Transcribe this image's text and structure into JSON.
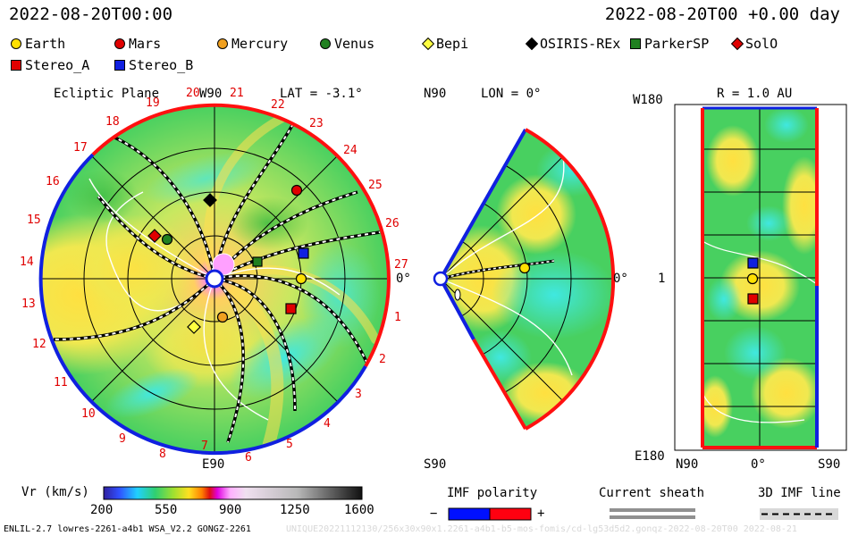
{
  "header": {
    "left_time": "2022-08-20T00:00",
    "right_time": "2022-08-20T00 +0.00 day"
  },
  "legend": {
    "items": [
      {
        "label": "Earth",
        "shape": "circle",
        "color": "#ffe000"
      },
      {
        "label": "Mars",
        "shape": "circle",
        "color": "#e00000"
      },
      {
        "label": "Mercury",
        "shape": "circle",
        "color": "#f0a020"
      },
      {
        "label": "Venus",
        "shape": "circle",
        "color": "#208020"
      },
      {
        "label": "Bepi",
        "shape": "diamond",
        "color": "#ffff40"
      },
      {
        "label": "OSIRIS-REx",
        "shape": "diamond",
        "color": "#000000"
      },
      {
        "label": "ParkerSP",
        "shape": "square",
        "color": "#208020"
      },
      {
        "label": "SolO",
        "shape": "diamond",
        "color": "#e00000"
      },
      {
        "label": "Stereo_A",
        "shape": "square",
        "color": "#e00000"
      },
      {
        "label": "Stereo_B",
        "shape": "square",
        "color": "#1020e0"
      }
    ]
  },
  "ecliptic": {
    "title": "Ecliptic Plane",
    "top_label": "W90",
    "lat_label": "LAT = -3.1°",
    "right_label": "0°",
    "bottom_label": "E90",
    "carrington_labels": [
      "1",
      "2",
      "3",
      "4",
      "5",
      "6",
      "7",
      "8",
      "9",
      "10",
      "11",
      "12",
      "13",
      "14",
      "15",
      "16",
      "17",
      "18",
      "19",
      "20",
      "21",
      "22",
      "23",
      "24",
      "25",
      "26",
      "27"
    ]
  },
  "meridional": {
    "top_label": "N90",
    "lon_label": "LON = 0°",
    "right_label": "0°",
    "bottom_label": "S90"
  },
  "sphere": {
    "radius_label": "R = 1.0 AU",
    "top_left": "W180",
    "mid_left": "1",
    "bottom_left": "E180",
    "x_left": "N90",
    "x_mid": "0°",
    "x_right": "S90"
  },
  "colorbar": {
    "title": "Vr (km/s)",
    "ticks": [
      "200",
      "550",
      "900",
      "1250",
      "1600"
    ]
  },
  "imf": {
    "title": "IMF polarity",
    "minus": "−",
    "plus": "+",
    "negative_color": "#0010ff",
    "positive_color": "#ff0010"
  },
  "sheath": {
    "title": "Current sheath"
  },
  "imf3d": {
    "title": "3D IMF line"
  },
  "footer": {
    "model": "ENLIL-2.7 lowres-2261-a4b1 WSA_V2.2 GONGZ-2261",
    "watermark": "UNIQUE20221112130/256x30x90x1.2261-a4b1-b5-mos-fomis/cd-lg53d5d2.gonqz-2022-08-20T00 2022-08-21"
  }
}
